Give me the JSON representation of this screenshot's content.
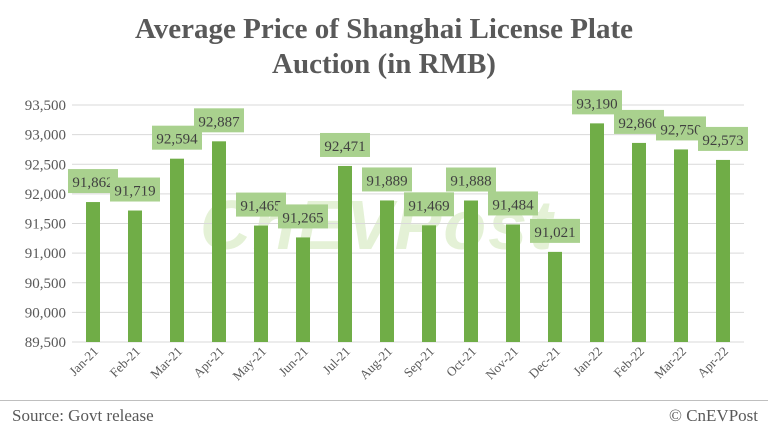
{
  "chart_data": {
    "type": "bar",
    "title": "Average Price of Shanghai License Plate Auction (in RMB)",
    "title_lines": [
      "Average Price of Shanghai License Plate",
      "Auction (in RMB)"
    ],
    "categories": [
      "Jan-21",
      "Feb-21",
      "Mar-21",
      "Apr-21",
      "May-21",
      "Jun-21",
      "Jul-21",
      "Aug-21",
      "Sep-21",
      "Oct-21",
      "Nov-21",
      "Dec-21",
      "Jan-22",
      "Feb-22",
      "Mar-22",
      "Apr-22"
    ],
    "values": [
      91862,
      91719,
      92594,
      92887,
      91465,
      91265,
      92471,
      91889,
      91469,
      91888,
      91484,
      91021,
      93190,
      92860,
      92750,
      92573
    ],
    "data_labels": [
      "91,862",
      "91,719",
      "92,594",
      "92,887",
      "91,465",
      "91,265",
      "92,471",
      "91,889",
      "91,469",
      "91,888",
      "91,484",
      "91,021",
      "93,190",
      "92,860",
      "92,750",
      "92,573"
    ],
    "ylim": [
      89500,
      93500
    ],
    "yticks": [
      89500,
      90000,
      90500,
      91000,
      91500,
      92000,
      92500,
      93000,
      93500
    ],
    "ytick_labels": [
      "89,500",
      "90,000",
      "90,500",
      "91,000",
      "91,500",
      "92,000",
      "92,500",
      "93,000",
      "93,500"
    ],
    "xlabel": "",
    "ylabel": "",
    "grid": true,
    "legend": "none",
    "colors": {
      "bar": "#70ad47",
      "label_bg": "#a9d18e",
      "grid": "#d9d9d9",
      "text": "#595959"
    }
  },
  "watermark": "CnEVPost",
  "footer": {
    "source": "Source: Govt release",
    "credit": "© CnEVPost"
  }
}
